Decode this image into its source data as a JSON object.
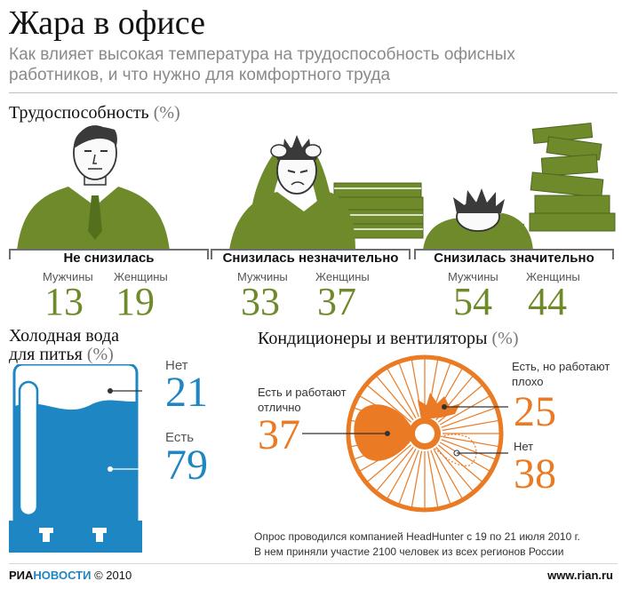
{
  "header": {
    "title": "Жара в офисе",
    "subtitle": "Как влияет высокая температура на трудоспособность офисных работников, и что нужно для комфортного труда"
  },
  "performance": {
    "title": "Трудоспособность",
    "unit": "(%)",
    "men_label": "Мужчины",
    "women_label": "Женщины",
    "groups": [
      {
        "label": "Не снизилась",
        "men": "13",
        "women": "19"
      },
      {
        "label": "Снизилась незначительно",
        "men": "33",
        "women": "37"
      },
      {
        "label": "Снизилась значительно",
        "men": "54",
        "women": "44"
      }
    ]
  },
  "water": {
    "title_line1": "Холодная вода",
    "title_line2": "для питья",
    "unit": "(%)",
    "no_label": "Нет",
    "no_value": "21",
    "yes_label": "Есть",
    "yes_value": "79",
    "fill_fraction": 0.79
  },
  "ac": {
    "title": "Кондиционеры и вентиляторы",
    "unit": "(%)",
    "items": [
      {
        "label_line1": "Есть и работают",
        "label_line2": "отлично",
        "value": "37"
      },
      {
        "label_line1": "Есть, но работают",
        "label_line2": "плохо",
        "value": "25"
      },
      {
        "label_line1": "Нет",
        "label_line2": "",
        "value": "38"
      }
    ]
  },
  "note": {
    "line1": "Опрос проводился компанией HeadHunter с 19 по 21 июля 2010 г.",
    "line2": "В нем приняли участие 2100 человек из всех регионов России"
  },
  "footer": {
    "logo_a": "РИА",
    "logo_b": "НОВОСТИ",
    "copyright": "© 2010",
    "url": "www.rian.ru"
  },
  "colors": {
    "green": "#6e8a2b",
    "blue": "#1e86c2",
    "orange": "#ea7a24"
  }
}
